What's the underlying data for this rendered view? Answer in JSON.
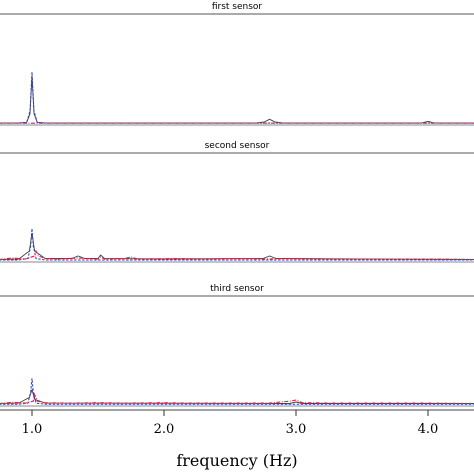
{
  "chart_data": {
    "type": "line",
    "xlabel": "frequency (Hz)",
    "xticks": [
      1.0,
      2.0,
      3.0,
      4.0
    ],
    "xtick_labels": [
      "1.0",
      "2.0",
      "3.0",
      "4.0"
    ],
    "xlim": [
      0.0,
      4.35
    ],
    "ylim": [
      0,
      1
    ],
    "colors": {
      "black": "#444444",
      "blue": "#2b3fbf",
      "red": "#e0204a"
    },
    "panels": [
      {
        "title": "first sensor",
        "series": [
          {
            "style": "solid-black",
            "x": [
              0.75,
              0.9,
              0.96,
              0.985,
              1.0,
              1.015,
              1.04,
              1.1,
              2.7,
              2.76,
              2.8,
              2.84,
              2.9,
              3.95,
              4.0,
              4.05,
              4.35
            ],
            "y": [
              0.02,
              0.02,
              0.03,
              0.2,
              0.92,
              0.2,
              0.03,
              0.02,
              0.02,
              0.04,
              0.09,
              0.04,
              0.02,
              0.02,
              0.05,
              0.02,
              0.02
            ]
          },
          {
            "style": "dashed-blue",
            "x": [
              0.75,
              0.9,
              0.96,
              0.985,
              1.0,
              1.015,
              1.04,
              1.1,
              4.35
            ],
            "y": [
              0.02,
              0.02,
              0.03,
              0.25,
              1.0,
              0.25,
              0.03,
              0.02,
              0.02
            ]
          },
          {
            "style": "dashdot-red",
            "x": [
              0.75,
              4.35
            ],
            "y": [
              0.015,
              0.015
            ]
          }
        ]
      },
      {
        "title": "second sensor",
        "series": [
          {
            "style": "solid-black",
            "x": [
              0.75,
              0.9,
              0.98,
              1.0,
              1.02,
              1.1,
              1.3,
              1.35,
              1.4,
              1.5,
              1.52,
              1.55,
              2.0,
              2.75,
              2.8,
              2.85,
              4.35
            ],
            "y": [
              0.03,
              0.04,
              0.2,
              0.56,
              0.2,
              0.05,
              0.05,
              0.1,
              0.05,
              0.05,
              0.12,
              0.05,
              0.04,
              0.05,
              0.1,
              0.05,
              0.03
            ]
          },
          {
            "style": "dashed-blue",
            "x": [
              0.75,
              0.9,
              0.97,
              0.99,
              1.0,
              1.01,
              1.03,
              1.1,
              4.35
            ],
            "y": [
              0.02,
              0.02,
              0.05,
              0.3,
              0.65,
              0.3,
              0.05,
              0.02,
              0.02
            ]
          },
          {
            "style": "dashdot-red",
            "x": [
              0.75,
              0.85,
              0.95,
              1.02,
              1.03,
              1.05,
              1.1,
              1.2,
              1.35,
              1.5,
              1.52,
              1.55,
              1.7,
              1.75,
              1.8,
              2.1,
              2.3,
              2.5,
              2.8,
              2.9,
              3.2,
              3.6,
              4.0,
              4.35
            ],
            "y": [
              0.03,
              0.06,
              0.04,
              0.1,
              0.2,
              0.1,
              0.05,
              0.04,
              0.06,
              0.04,
              0.08,
              0.04,
              0.05,
              0.08,
              0.04,
              0.05,
              0.04,
              0.05,
              0.04,
              0.05,
              0.04,
              0.04,
              0.04,
              0.03
            ]
          }
        ]
      },
      {
        "title": "third sensor",
        "series": [
          {
            "style": "solid-black",
            "x": [
              0.75,
              0.9,
              0.98,
              1.0,
              1.02,
              1.1,
              2.95,
              3.0,
              3.05,
              4.35
            ],
            "y": [
              0.04,
              0.05,
              0.2,
              0.4,
              0.15,
              0.05,
              0.04,
              0.08,
              0.04,
              0.04
            ]
          },
          {
            "style": "dashed-blue",
            "x": [
              0.75,
              0.9,
              0.97,
              0.99,
              1.0,
              1.01,
              1.03,
              1.1,
              4.35
            ],
            "y": [
              0.02,
              0.02,
              0.05,
              0.35,
              0.7,
              0.35,
              0.05,
              0.02,
              0.02
            ]
          },
          {
            "style": "dashdot-red",
            "x": [
              0.75,
              0.85,
              0.95,
              1.01,
              1.02,
              1.04,
              1.1,
              1.3,
              1.5,
              1.7,
              2.0,
              2.2,
              2.5,
              2.8,
              2.95,
              3.0,
              3.05,
              3.3,
              3.6,
              4.0,
              4.35
            ],
            "y": [
              0.04,
              0.07,
              0.05,
              0.1,
              0.28,
              0.1,
              0.06,
              0.05,
              0.06,
              0.05,
              0.06,
              0.05,
              0.05,
              0.05,
              0.1,
              0.13,
              0.06,
              0.05,
              0.05,
              0.05,
              0.04
            ]
          }
        ]
      }
    ]
  }
}
